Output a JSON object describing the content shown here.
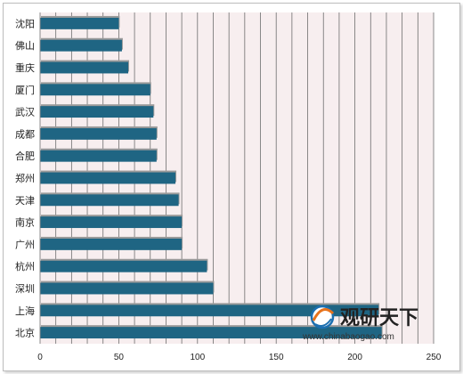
{
  "chart_data": {
    "type": "bar",
    "orientation": "horizontal",
    "categories": [
      "沈阳",
      "佛山",
      "重庆",
      "厦门",
      "武汉",
      "成都",
      "合肥",
      "郑州",
      "天津",
      "南京",
      "广州",
      "杭州",
      "深圳",
      "上海",
      "北京"
    ],
    "values": [
      50,
      52,
      56,
      70,
      72,
      74,
      74,
      86,
      88,
      90,
      90,
      106,
      110,
      215,
      217
    ],
    "xlim": [
      0,
      250
    ],
    "xticks": [
      "0",
      "50",
      "100",
      "150",
      "200",
      "250"
    ],
    "title": "",
    "xlabel": "",
    "ylabel": "",
    "grid": "vertical",
    "colors": {
      "bar": "#1f6583",
      "shadow": "#9a9a9a",
      "plot_bg": "#f7eeef",
      "grid": "#6e6e6e"
    }
  },
  "watermark": {
    "name": "观研天下",
    "url": "www.chinabaogao.com",
    "logo_icon": "guanyan-logo-icon",
    "colors": {
      "logo_orange": "#e8731c",
      "logo_blue": "#1c6fb0"
    }
  }
}
